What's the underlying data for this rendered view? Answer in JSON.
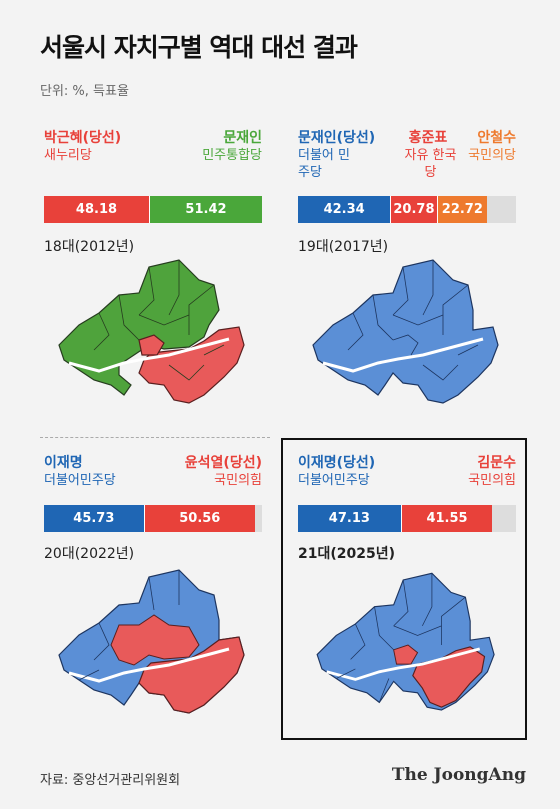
{
  "title": "서울시 자치구별 역대 대선 결과",
  "unit": "단위: %, 득표율",
  "colors": {
    "red": "#e8413a",
    "green": "#4aa73a",
    "blue": "#1f66b4",
    "orange": "#ee7a2e",
    "gray": "#dddddd",
    "map_red": "#e85a5a",
    "map_green": "#4fa33c",
    "map_blue": "#5b8fd6"
  },
  "chart_data": [
    {
      "type": "bar",
      "year": "18대(2012년)",
      "candidates": [
        {
          "name": "박근혜(당선)",
          "party": "새누리당",
          "value": 48.18,
          "color": "#e8413a"
        },
        {
          "name": "문재인",
          "party": "민주통합당",
          "value": 51.42,
          "color": "#4aa73a"
        }
      ]
    },
    {
      "type": "bar",
      "year": "19대(2017년)",
      "candidates": [
        {
          "name": "문재인(당선)",
          "party": "더불어 민주당",
          "value": 42.34,
          "color": "#1f66b4"
        },
        {
          "name": "홍준표",
          "party": "자유 한국당",
          "value": 20.78,
          "color": "#e8413a"
        },
        {
          "name": "안철수",
          "party": "국민의당",
          "value": 22.72,
          "color": "#ee7a2e"
        }
      ]
    },
    {
      "type": "bar",
      "year": "20대(2022년)",
      "candidates": [
        {
          "name": "이재명",
          "party": "더불어민주당",
          "value": 45.73,
          "color": "#1f66b4"
        },
        {
          "name": "윤석열(당선)",
          "party": "국민의힘",
          "value": 50.56,
          "color": "#e8413a"
        }
      ]
    },
    {
      "type": "bar",
      "year": "21대(2025년)",
      "candidates": [
        {
          "name": "이재명(당선)",
          "party": "더불어민주당",
          "value": 47.13,
          "color": "#1f66b4"
        },
        {
          "name": "김문수",
          "party": "국민의힘",
          "value": 41.55,
          "color": "#e8413a"
        }
      ]
    }
  ],
  "source": "자료: 중앙선거관리위원회",
  "logo": "The JoongAng"
}
